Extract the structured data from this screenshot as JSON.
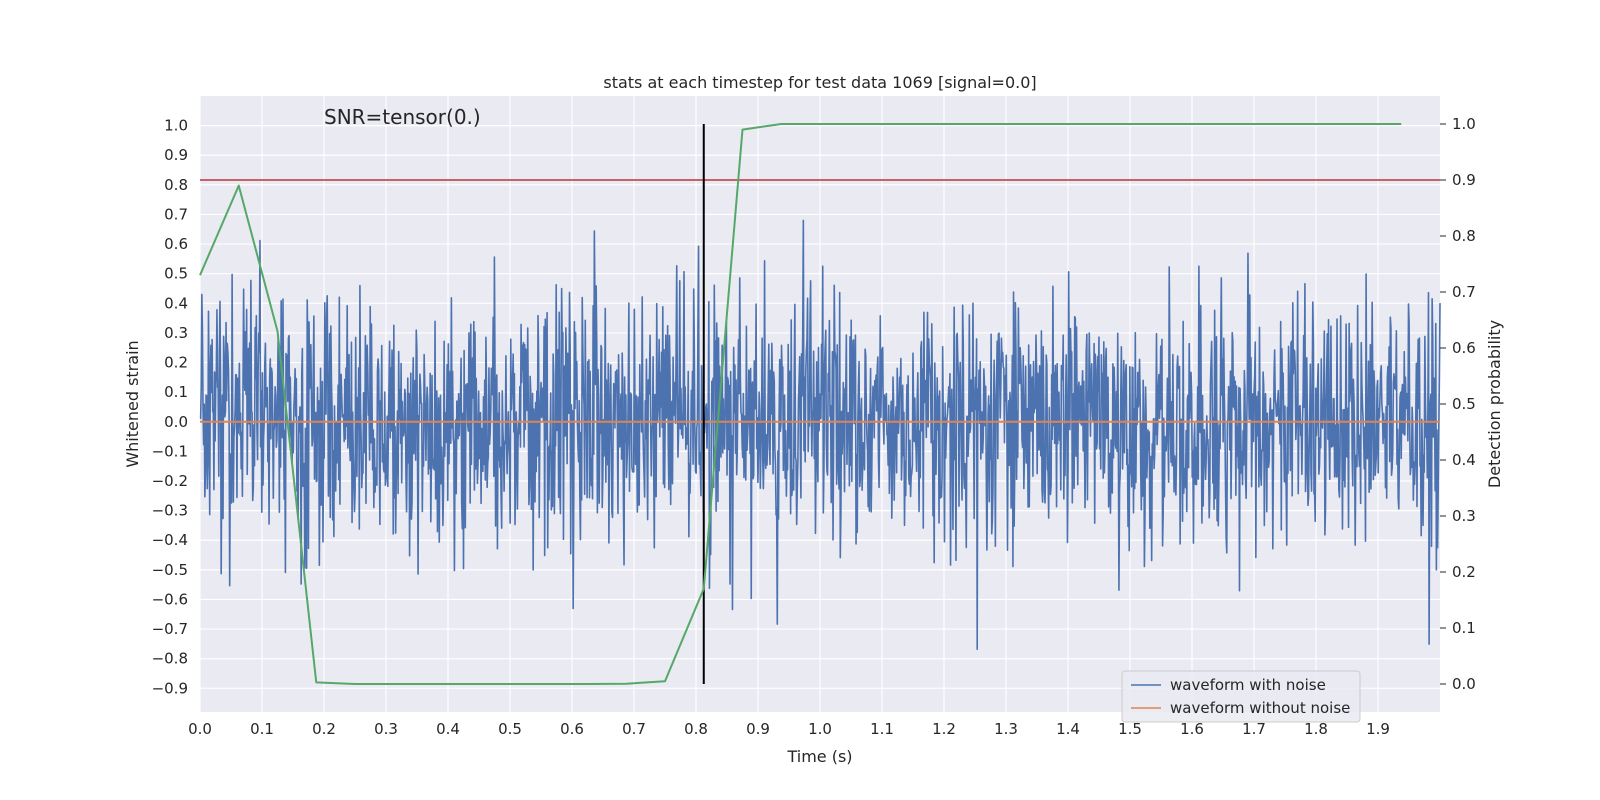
{
  "chart_data": {
    "type": "line",
    "title": "stats at each timestep for test data 1069 [signal=0.0]",
    "xlabel": "Time (s)",
    "ylabel": "Whitened strain",
    "y2label": "Detection probability",
    "annotation": "SNR=tensor(0.)",
    "xlim": [
      0.0,
      2.0
    ],
    "ylim": [
      -0.98,
      1.1
    ],
    "y2lim": [
      -0.05,
      1.05
    ],
    "xticks": [
      "0.0",
      "0.1",
      "0.2",
      "0.3",
      "0.4",
      "0.5",
      "0.6",
      "0.7",
      "0.8",
      "0.9",
      "1.0",
      "1.1",
      "1.2",
      "1.3",
      "1.4",
      "1.5",
      "1.6",
      "1.7",
      "1.8",
      "1.9"
    ],
    "yticks": [
      "1.0",
      "0.9",
      "0.8",
      "0.7",
      "0.6",
      "0.5",
      "0.4",
      "0.3",
      "0.2",
      "0.1",
      "0.0",
      "−0.1",
      "−0.2",
      "−0.3",
      "−0.4",
      "−0.5",
      "−0.6",
      "−0.7",
      "−0.8",
      "−0.9"
    ],
    "y2ticks": [
      "1.0",
      "0.9",
      "0.8",
      "0.7",
      "0.6",
      "0.5",
      "0.4",
      "0.3",
      "0.2",
      "0.1",
      "0.0"
    ],
    "grid": true,
    "legend_position": "lower-right",
    "colors": {
      "background": "#eaeaf2",
      "noisy": "#4c72b0",
      "clean": "#dd8452",
      "probability": "#55a868",
      "threshold": "#c44e52",
      "marker": "#000000",
      "grid": "#ffffff"
    },
    "series": [
      {
        "name": "waveform with noise",
        "axis": "left",
        "amplitude_std": 0.21,
        "note": "dense whitened noise samples, roughly zero-mean"
      },
      {
        "name": "waveform without noise",
        "axis": "left",
        "x": [
          0.0,
          2.0
        ],
        "y": [
          0.0,
          0.0
        ]
      },
      {
        "axis": "right",
        "x": [
          0.0,
          0.0625,
          0.125,
          0.1875,
          0.25,
          0.3125,
          0.375,
          0.4375,
          0.5,
          0.5625,
          0.625,
          0.6875,
          0.75,
          0.8125,
          0.875,
          0.9375,
          1.0,
          1.0625,
          1.125,
          1.1875,
          1.25,
          1.3125,
          1.375,
          1.4375,
          1.5,
          1.5625,
          1.625,
          1.6875,
          1.75,
          1.8125,
          1.875,
          1.9375
        ],
        "y": [
          0.73,
          0.89,
          0.63,
          0.003,
          0.0,
          0.0,
          0.0,
          0.0,
          0.0,
          0.0,
          0.0,
          0.0005,
          0.005,
          0.17,
          0.99,
          1.0,
          1.0,
          1.0,
          1.0,
          1.0,
          1.0,
          1.0,
          1.0,
          1.0,
          1.0,
          1.0,
          1.0,
          1.0,
          1.0,
          1.0,
          1.0,
          1.0
        ]
      },
      {
        "axis": "right",
        "x": [
          0.0,
          2.0
        ],
        "y": [
          0.9,
          0.9
        ]
      },
      {
        "axis": "right",
        "type": "vline",
        "x": 0.8125,
        "y": [
          0.0,
          1.0
        ]
      }
    ]
  }
}
